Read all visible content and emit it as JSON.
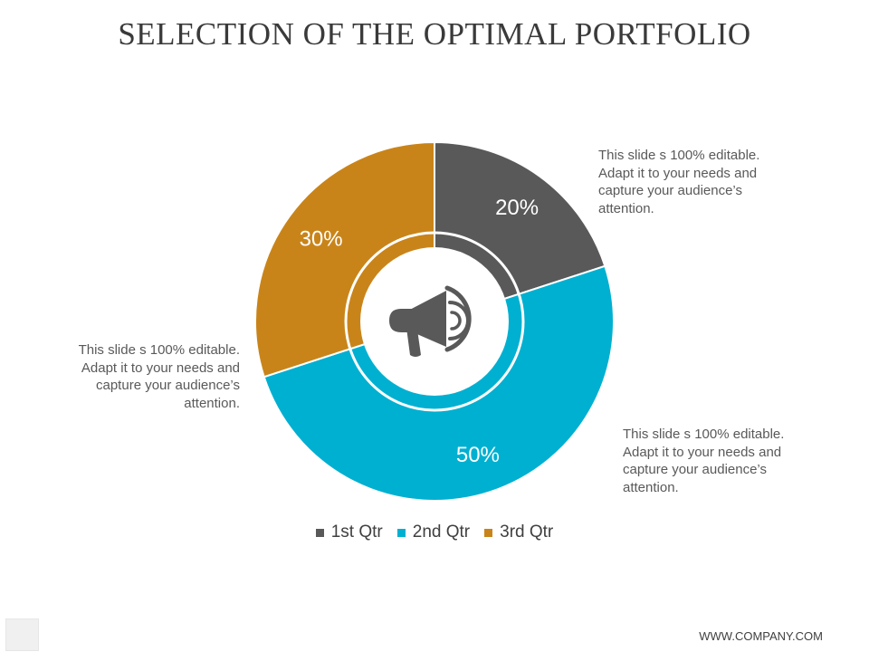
{
  "slide": {
    "title": "SELECTION OF THE OPTIMAL PORTFOLIO",
    "notes": [
      "This slide s 100% editable. Adapt it to your needs and capture your audience’s attention.",
      "This slide s 100% editable. Adapt it to your needs and capture your audience’s attention.",
      "This slide s 100% editable. Adapt it to your needs and capture your audience’s attention."
    ],
    "footer": "WWW.COMPANY.COM",
    "center_icon": "megaphone-icon"
  },
  "chart_data": {
    "type": "pie",
    "style": "donut",
    "title": "",
    "categories": [
      "1st Qtr",
      "2nd Qtr",
      "3rd Qtr"
    ],
    "values": [
      20,
      50,
      30
    ],
    "labels": [
      "20%",
      "50%",
      "30%"
    ],
    "colors": [
      "#595959",
      "#00b0d1",
      "#c98419"
    ],
    "legend_position": "bottom"
  }
}
